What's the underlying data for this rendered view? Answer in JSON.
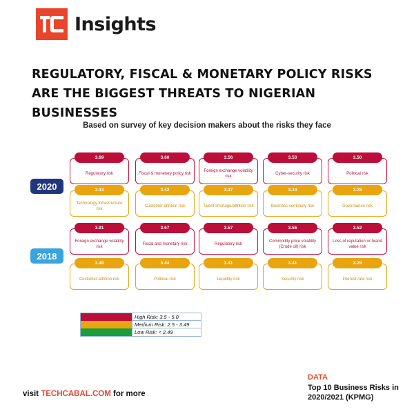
{
  "brand": {
    "logo_text": "tc",
    "name": "Insights"
  },
  "headline": {
    "line1": "REGULATORY, FISCAL & MONETARY POLICY RISKS",
    "line2": "ARE THE BIGGEST THREATS TO NIGERIAN BUSINESSES"
  },
  "subtitle": "Based on survey of key decision makers about the risks they face",
  "colors": {
    "high": "#bb0e38",
    "medium": "#e9a510",
    "low": "#1a9d3c",
    "year_2020": "#21367a",
    "year_2018": "#3aa4dc",
    "brand": "#e8452c"
  },
  "years": [
    {
      "year": "2020",
      "risks": [
        {
          "score": "3.69",
          "label": "Regulatory risk",
          "level": "high"
        },
        {
          "score": "3.60",
          "label": "Fiscal & monetary policy risk",
          "level": "high"
        },
        {
          "score": "3.56",
          "label": "Foreign exchange volatility risk",
          "level": "high"
        },
        {
          "score": "3.53",
          "label": "Cyber-security risk",
          "level": "high"
        },
        {
          "score": "3.50",
          "label": "Political risk",
          "level": "high"
        },
        {
          "score": "3.43",
          "label": "Technology infrastructure risk",
          "level": "medium"
        },
        {
          "score": "3.42",
          "label": "Customer attrition risk",
          "level": "medium"
        },
        {
          "score": "3.37",
          "label": "Talent shortage/attrition risk",
          "level": "medium"
        },
        {
          "score": "3.34",
          "label": "Business continuity risk",
          "level": "medium"
        },
        {
          "score": "3.28",
          "label": "Governance risk",
          "level": "medium"
        }
      ]
    },
    {
      "year": "2018",
      "risks": [
        {
          "score": "3.91",
          "label": "Foreign exchange volatility risk",
          "level": "high"
        },
        {
          "score": "3.67",
          "label": "Fiscal and monetary risk",
          "level": "high"
        },
        {
          "score": "3.57",
          "label": "Regulatory risk",
          "level": "high"
        },
        {
          "score": "3.56",
          "label": "Commodity price volatility (Crude oil) risk",
          "level": "high"
        },
        {
          "score": "3.52",
          "label": "Loss of reputation or brand value risk",
          "level": "high"
        },
        {
          "score": "3.48",
          "label": "Customer attrition risk",
          "level": "medium"
        },
        {
          "score": "3.44",
          "label": "Political risk",
          "level": "medium"
        },
        {
          "score": "3.41",
          "label": "Liquidity risk",
          "level": "medium"
        },
        {
          "score": "3.41",
          "label": "Security risk",
          "level": "medium"
        },
        {
          "score": "3.29",
          "label": "Interest rate risk",
          "level": "medium"
        }
      ]
    }
  ],
  "legend": [
    {
      "label": "High Risk: 3.5 - 5.0",
      "level": "high"
    },
    {
      "label": "Medium Risk: 2.5 - 3.49",
      "level": "medium"
    },
    {
      "label": "Low Risk: < 2.49",
      "level": "low"
    }
  ],
  "footer": {
    "visit_prefix": "visit",
    "link": "TECHCABAL.COM",
    "visit_suffix": "for more",
    "data_title": "DATA",
    "source": "Top 10 Business Risks in 2020/2021 (KPMG)"
  }
}
